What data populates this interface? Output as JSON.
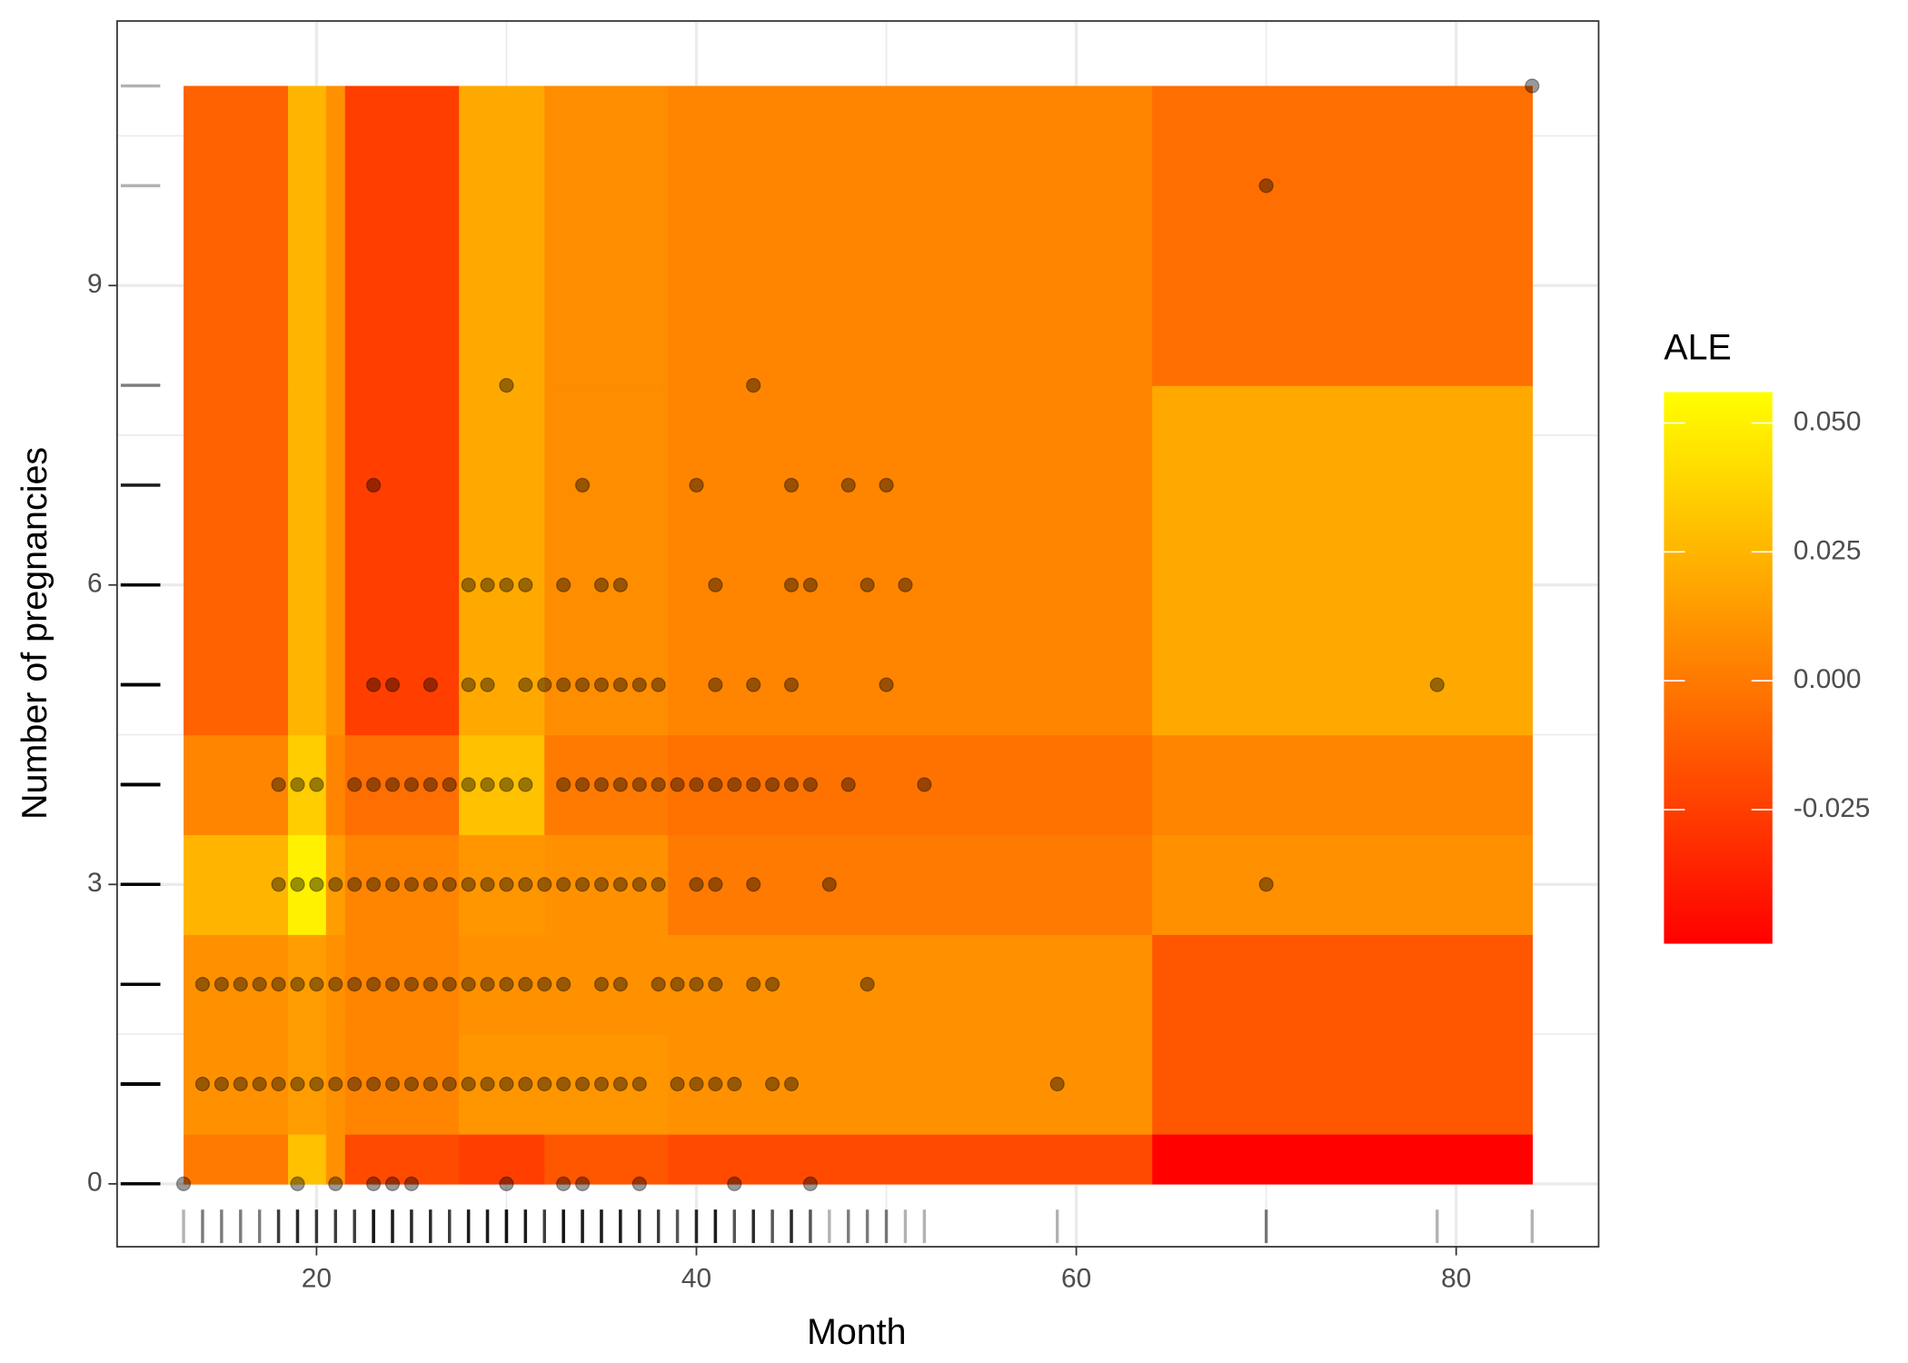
{
  "chart_data": {
    "type": "heatmap",
    "x_label": "Month",
    "y_label": "Number of pregnancies",
    "legend_title": "ALE",
    "x_edges": [
      13,
      18.5,
      20.5,
      21.5,
      27.5,
      32,
      38.5,
      64,
      84
    ],
    "y_edges": [
      0,
      0.5,
      1.5,
      2.5,
      3.5,
      4.5,
      8,
      11
    ],
    "values": [
      [
        0.0,
        0.03,
        0.01,
        -0.02,
        -0.025,
        -0.015,
        -0.02,
        -0.05
      ],
      [
        0.01,
        0.015,
        0.01,
        0.005,
        0.012,
        0.012,
        0.01,
        -0.015
      ],
      [
        0.01,
        0.015,
        0.01,
        0.005,
        0.01,
        0.01,
        0.01,
        -0.015
      ],
      [
        0.025,
        0.05,
        0.015,
        0.005,
        0.012,
        0.01,
        0.0,
        0.01
      ],
      [
        0.005,
        0.035,
        0.005,
        -0.005,
        0.03,
        0.0,
        -0.003,
        0.005
      ],
      [
        -0.01,
        0.025,
        0.01,
        -0.025,
        0.02,
        0.008,
        0.005,
        0.02
      ],
      [
        -0.01,
        0.025,
        0.01,
        -0.025,
        0.02,
        0.008,
        0.005,
        -0.005
      ]
    ],
    "colors": [
      "#ff0000",
      "#ffff00"
    ],
    "clim": [
      -0.051,
      0.056
    ],
    "cticks": [
      {
        "value": -0.025,
        "label": "-0.025"
      },
      {
        "value": 0,
        "label": "0.000"
      },
      {
        "value": 0.025,
        "label": "0.025"
      },
      {
        "value": 0.05,
        "label": "0.050"
      }
    ],
    "points": {
      "x": [
        13,
        19,
        21,
        23,
        24,
        25,
        30,
        33,
        34,
        37,
        42,
        46,
        14,
        15,
        16,
        17,
        18,
        19,
        20,
        21,
        22,
        23,
        24,
        25,
        26,
        27,
        28,
        29,
        30,
        31,
        32,
        33,
        34,
        35,
        36,
        37,
        39,
        40,
        41,
        42,
        44,
        45,
        59,
        14,
        15,
        16,
        17,
        18,
        19,
        20,
        21,
        22,
        23,
        24,
        25,
        26,
        27,
        28,
        29,
        30,
        31,
        32,
        33,
        35,
        36,
        38,
        39,
        40,
        41,
        43,
        44,
        49,
        18,
        19,
        20,
        21,
        22,
        23,
        24,
        25,
        26,
        27,
        28,
        29,
        30,
        31,
        32,
        33,
        34,
        35,
        36,
        37,
        38,
        40,
        41,
        43,
        47,
        70,
        18,
        19,
        20,
        22,
        23,
        24,
        25,
        26,
        27,
        28,
        29,
        30,
        31,
        33,
        34,
        35,
        36,
        37,
        38,
        39,
        40,
        41,
        42,
        43,
        44,
        45,
        46,
        48,
        52,
        23,
        24,
        26,
        28,
        29,
        31,
        32,
        33,
        34,
        35,
        36,
        37,
        38,
        41,
        43,
        45,
        50,
        79,
        28,
        29,
        30,
        31,
        33,
        35,
        36,
        41,
        45,
        46,
        49,
        51,
        23,
        34,
        40,
        45,
        48,
        50,
        30,
        43,
        70,
        84
      ],
      "y": [
        0,
        0,
        0,
        0,
        0,
        0,
        0,
        0,
        0,
        0,
        0,
        0,
        1,
        1,
        1,
        1,
        1,
        1,
        1,
        1,
        1,
        1,
        1,
        1,
        1,
        1,
        1,
        1,
        1,
        1,
        1,
        1,
        1,
        1,
        1,
        1,
        1,
        1,
        1,
        1,
        1,
        1,
        1,
        2,
        2,
        2,
        2,
        2,
        2,
        2,
        2,
        2,
        2,
        2,
        2,
        2,
        2,
        2,
        2,
        2,
        2,
        2,
        2,
        2,
        2,
        2,
        2,
        2,
        2,
        2,
        2,
        2,
        3,
        3,
        3,
        3,
        3,
        3,
        3,
        3,
        3,
        3,
        3,
        3,
        3,
        3,
        3,
        3,
        3,
        3,
        3,
        3,
        3,
        3,
        3,
        3,
        3,
        3,
        4,
        4,
        4,
        4,
        4,
        4,
        4,
        4,
        4,
        4,
        4,
        4,
        4,
        4,
        4,
        4,
        4,
        4,
        4,
        4,
        4,
        4,
        4,
        4,
        4,
        4,
        4,
        4,
        4,
        5,
        5,
        5,
        5,
        5,
        5,
        5,
        5,
        5,
        5,
        5,
        5,
        5,
        5,
        5,
        5,
        5,
        5,
        6,
        6,
        6,
        6,
        6,
        6,
        6,
        6,
        6,
        6,
        6,
        6,
        7,
        7,
        7,
        7,
        7,
        7,
        8,
        8,
        10,
        11
      ]
    },
    "xlim": [
      9.5,
      87.5
    ],
    "ylim": [
      -0.63,
      11.65
    ],
    "xticks": [
      20,
      40,
      60,
      80
    ],
    "yticks": [
      0,
      3,
      6,
      9
    ],
    "x_minor_grid": [
      30,
      50,
      70
    ],
    "y_minor_grid": [
      1.5,
      4.5,
      7.5,
      10.5
    ],
    "grid": true
  }
}
